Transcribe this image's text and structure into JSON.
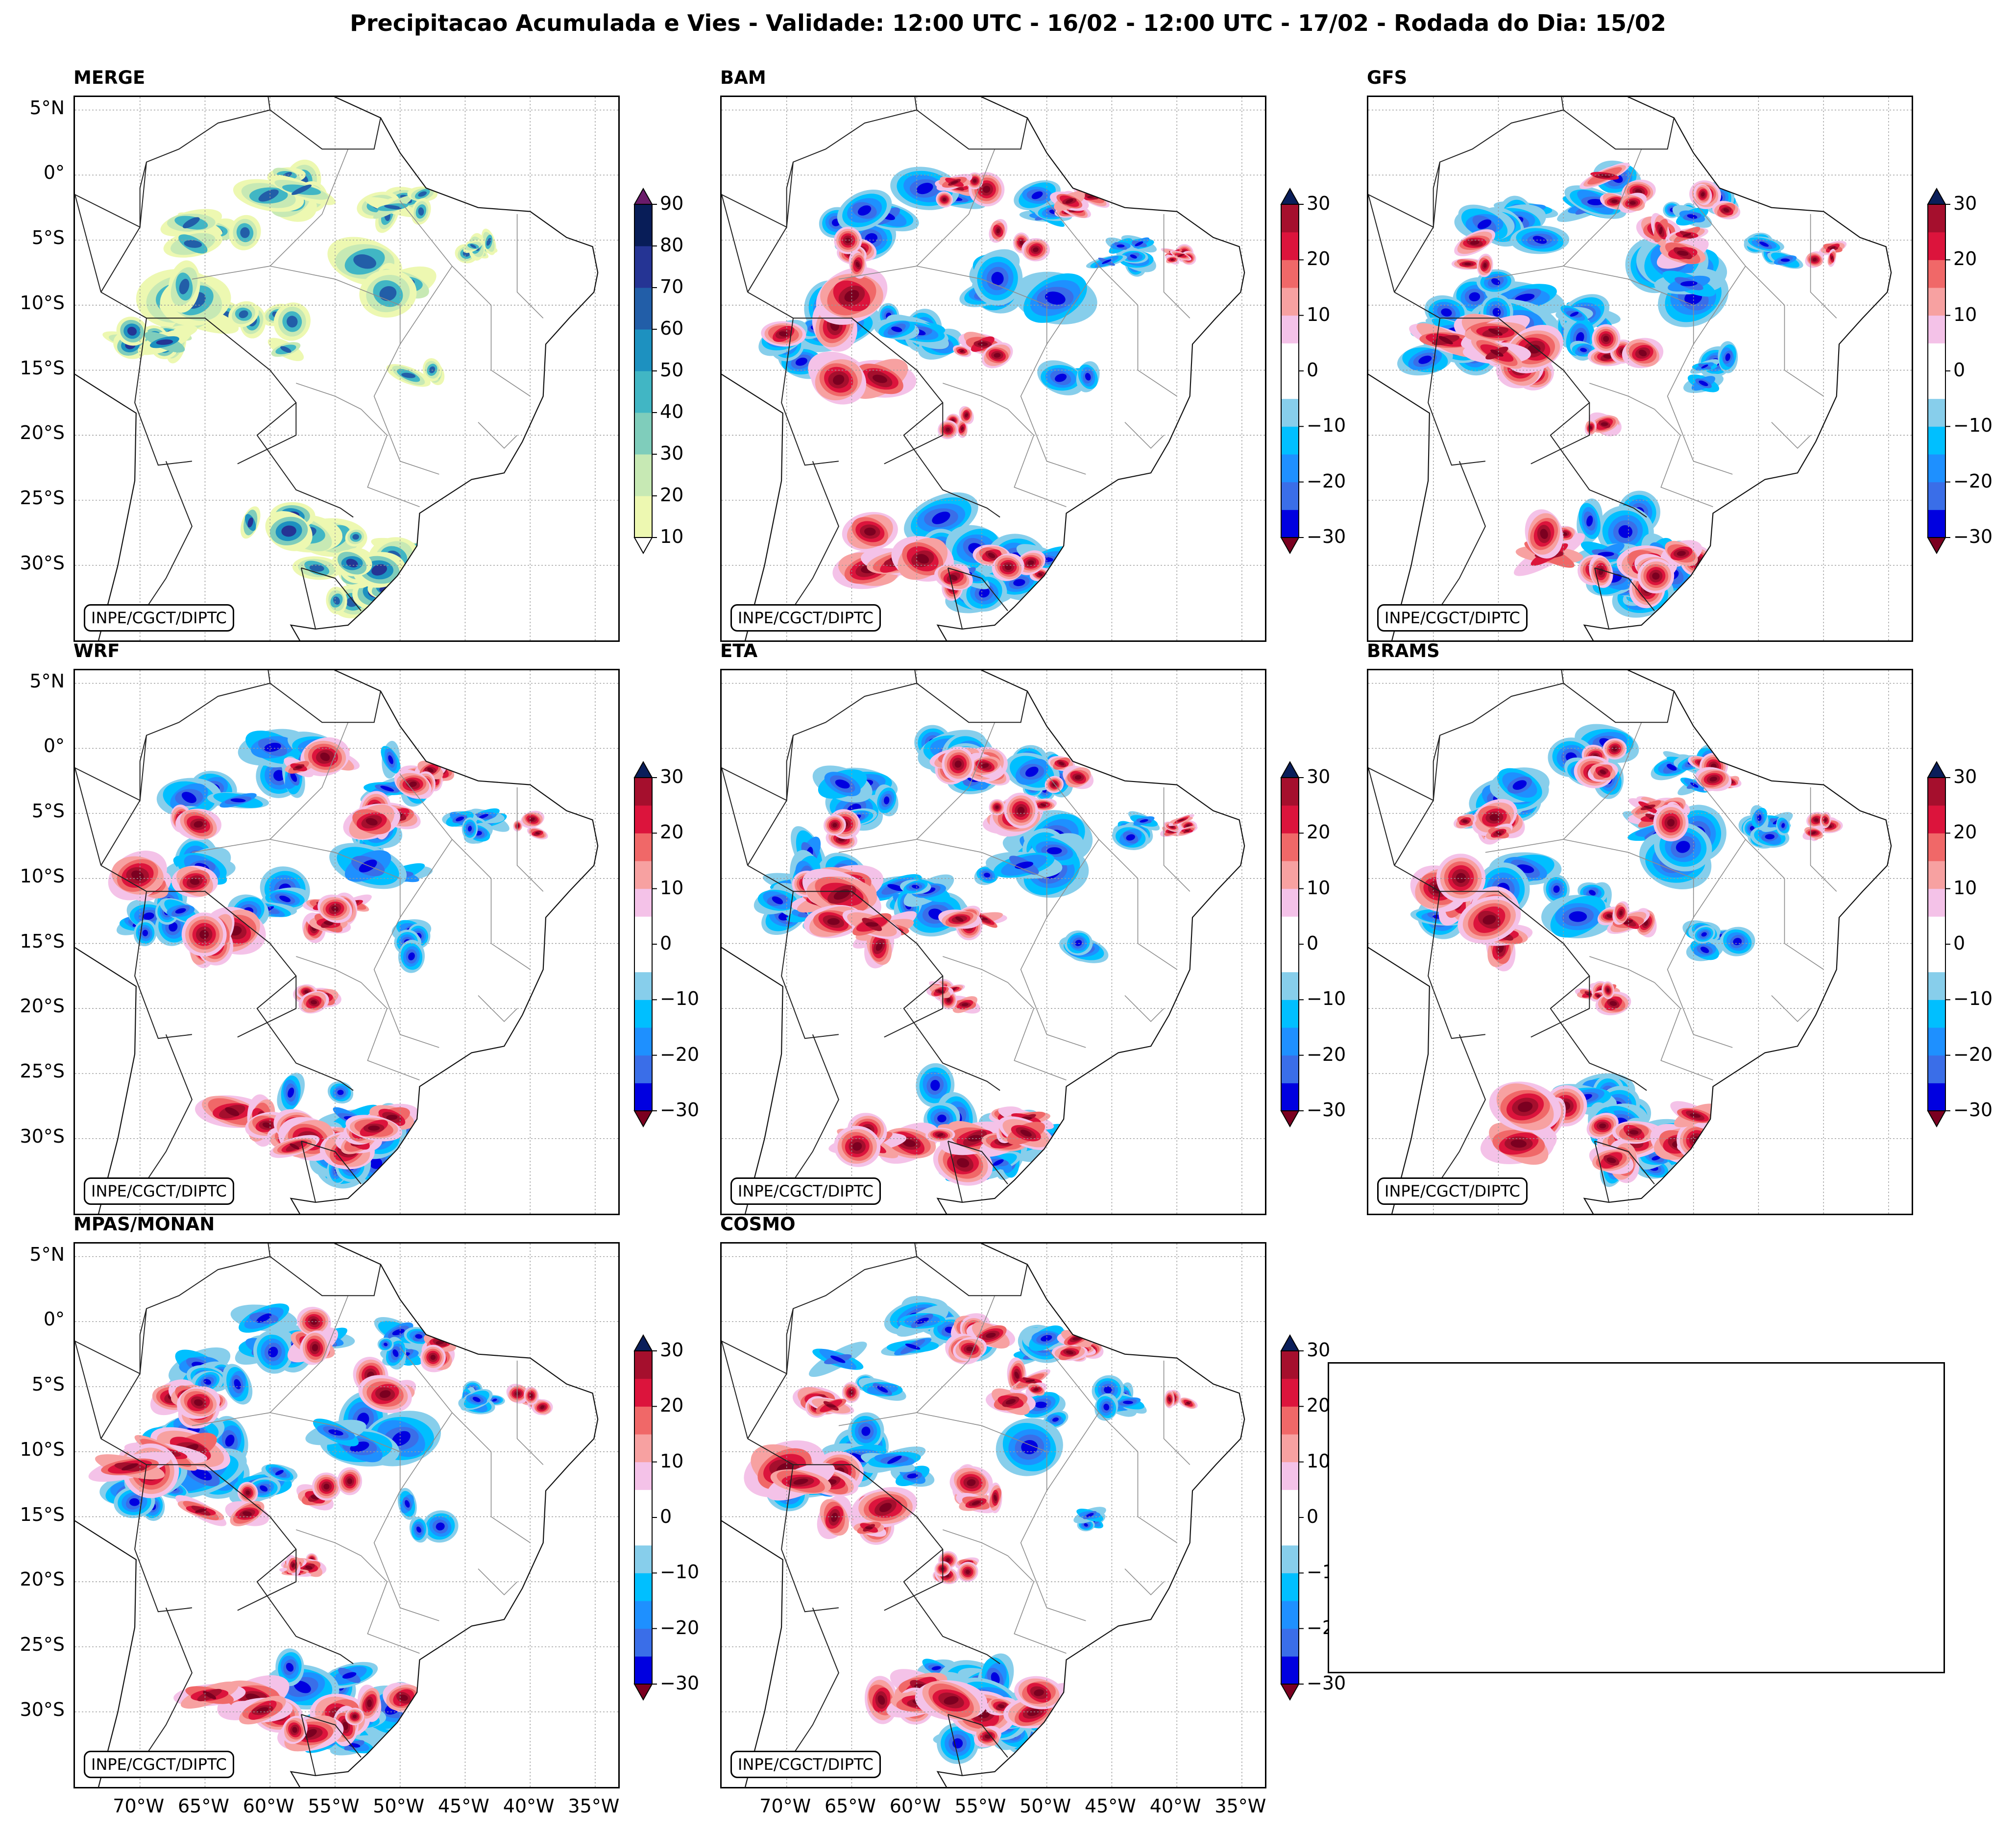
{
  "title": "Precipitacao Acumulada e Vies - Validade: 12:00 UTC - 16/02 - 12:00 UTC - 17/02 - Rodada do Dia: 15/02",
  "credit": "INPE/CGCT/DIPTC",
  "lat_labels": [
    "5°N",
    "0°",
    "5°S",
    "10°S",
    "15°S",
    "20°S",
    "25°S",
    "30°S"
  ],
  "lon_labels": [
    "70°W",
    "65°W",
    "60°W",
    "55°W",
    "50°W",
    "45°W",
    "40°W",
    "35°W"
  ],
  "panels": [
    {
      "label": "MERGE",
      "kind": "precip"
    },
    {
      "label": "BAM",
      "kind": "bias"
    },
    {
      "label": "GFS",
      "kind": "bias"
    },
    {
      "label": "WRF",
      "kind": "bias"
    },
    {
      "label": "ETA",
      "kind": "bias"
    },
    {
      "label": "BRAMS",
      "kind": "bias"
    },
    {
      "label": "MPAS/MONAN",
      "kind": "bias"
    },
    {
      "label": "COSMO",
      "kind": "bias"
    }
  ],
  "precip_scale": {
    "ticks": [
      "90",
      "80",
      "70",
      "60",
      "50",
      "40",
      "30",
      "20",
      "10"
    ],
    "colors": [
      "#edf8b1",
      "#c7e9b4",
      "#7fcdbb",
      "#41b6c4",
      "#1d91c0",
      "#225ea8",
      "#253494",
      "#081d58"
    ],
    "over_color": "#6a1b6a",
    "under_color": "#ffffff"
  },
  "bias_scale": {
    "ticks": [
      "30",
      "20",
      "10",
      "0",
      "−10",
      "−20",
      "−30"
    ],
    "colors": [
      "#0000e0",
      "#3a6ee8",
      "#1e90ff",
      "#00bfff",
      "#87ceeb",
      "#ffffff",
      "#ffffff",
      "#f4c2e8",
      "#f7a1a1",
      "#f06868",
      "#dc143c",
      "#a50f2d"
    ],
    "over_color": "#0a1e5a",
    "under_color": "#7b0020"
  }
}
